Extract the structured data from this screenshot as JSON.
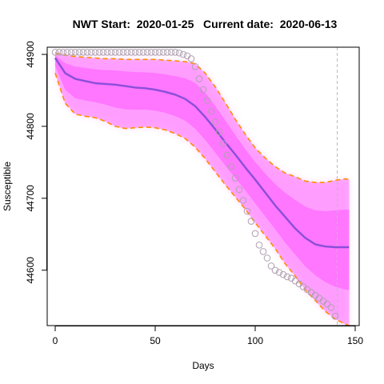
{
  "chart_data": {
    "type": "line",
    "title": "NWT Start:  2020-01-25   Current date:  2020-06-13",
    "xlabel": "Days",
    "ylabel": "Susceptible",
    "xlim": [
      -4,
      152
    ],
    "ylim": [
      44523,
      44910
    ],
    "xticks": [
      0,
      50,
      100,
      150
    ],
    "yticks": [
      44600,
      44700,
      44800,
      44900
    ],
    "current_day": 141,
    "colors": {
      "cloud": "#ff55ff",
      "median": "#8a4fd8",
      "band": "#ff8c00",
      "observed": "#b0a0b0",
      "current_line": "#bbbbbb"
    },
    "series": [
      {
        "name": "",
        "style": "points",
        "x": [
          0,
          2,
          4,
          6,
          8,
          10,
          12,
          14,
          16,
          18,
          20,
          22,
          24,
          26,
          28,
          30,
          32,
          34,
          36,
          38,
          40,
          42,
          44,
          46,
          48,
          50,
          52,
          54,
          56,
          58,
          60,
          62,
          64,
          66,
          68,
          70,
          72,
          74,
          76,
          78,
          80,
          82,
          84,
          86,
          88,
          90,
          92,
          94,
          96,
          98,
          100,
          102,
          104,
          106,
          108,
          110,
          112,
          114,
          116,
          118,
          120,
          122,
          124,
          126,
          128,
          130,
          132,
          134,
          136,
          138,
          140
        ],
        "y": [
          44903,
          44903,
          44903,
          44903,
          44903,
          44903,
          44903,
          44903,
          44903,
          44903,
          44903,
          44903,
          44903,
          44903,
          44903,
          44903,
          44903,
          44903,
          44903,
          44903,
          44903,
          44903,
          44903,
          44903,
          44903,
          44903,
          44903,
          44903,
          44903,
          44903,
          44903,
          44902,
          44900,
          44898,
          44894,
          44883,
          44866,
          44851,
          44836,
          44821,
          44806,
          44792,
          44776,
          44760,
          44744,
          44728,
          44712,
          44697,
          44682,
          44668,
          44651,
          44635,
          44626,
          44617,
          44606,
          44600,
          44597,
          44594,
          44591,
          44589,
          44585,
          44581,
          44577,
          44573,
          44569,
          44565,
          44561,
          44557,
          44553,
          44548,
          44536
        ]
      },
      {
        "name": "",
        "style": "line",
        "x": [
          0,
          5,
          10,
          15,
          20,
          25,
          30,
          35,
          40,
          45,
          50,
          55,
          60,
          65,
          70,
          75,
          80,
          85,
          90,
          95,
          100,
          105,
          110,
          115,
          120,
          125,
          130,
          135,
          140,
          145,
          147
        ],
        "y": [
          44895,
          44874,
          44866,
          44863,
          44860,
          44859,
          44858,
          44856,
          44854,
          44853,
          44851,
          44848,
          44844,
          44838,
          44828,
          44813,
          44796,
          44778,
          44761,
          44743,
          44726,
          44708,
          44690,
          44674,
          44658,
          44645,
          44636,
          44633,
          44632,
          44632,
          44632
        ]
      },
      {
        "name": "",
        "style": "dashed",
        "x": [
          0,
          5,
          10,
          15,
          20,
          25,
          30,
          35,
          40,
          45,
          50,
          55,
          60,
          65,
          70,
          75,
          80,
          85,
          90,
          95,
          100,
          105,
          110,
          115,
          120,
          125,
          130,
          135,
          140,
          145,
          147
        ],
        "y": [
          44902,
          44899,
          44897,
          44896,
          44895,
          44894,
          44894,
          44893,
          44893,
          44893,
          44893,
          44892,
          44891,
          44890,
          44887,
          44874,
          44855,
          44833,
          44810,
          44789,
          44770,
          44756,
          44744,
          44735,
          44730,
          44724,
          44722,
          44722,
          44725,
          44727,
          44726
        ]
      },
      {
        "name": "",
        "style": "dashed",
        "x": [
          0,
          5,
          10,
          15,
          20,
          25,
          30,
          35,
          40,
          45,
          50,
          55,
          60,
          65,
          70,
          75,
          80,
          85,
          90,
          95,
          100,
          105,
          110,
          115,
          120,
          125,
          130,
          135,
          140,
          145,
          147
        ],
        "y": [
          44874,
          44832,
          44817,
          44814,
          44812,
          44807,
          44800,
          44797,
          44798,
          44799,
          44798,
          44795,
          44790,
          44783,
          44771,
          44755,
          44737,
          44719,
          44702,
          44685,
          44666,
          44648,
          44630,
          44609,
          44592,
          44573,
          44558,
          44543,
          44532,
          44525,
          44523
        ]
      }
    ]
  }
}
